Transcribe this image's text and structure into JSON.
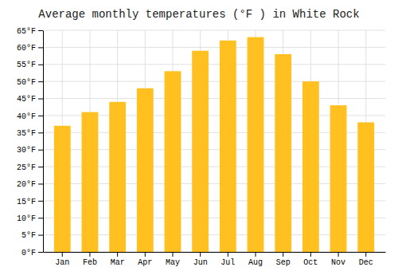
{
  "chart_data": {
    "type": "bar",
    "title": "Average monthly temperatures (°F ) in White Rock",
    "categories": [
      "Jan",
      "Feb",
      "Mar",
      "Apr",
      "May",
      "Jun",
      "Jul",
      "Aug",
      "Sep",
      "Oct",
      "Nov",
      "Dec"
    ],
    "values": [
      37,
      41,
      44,
      48,
      53,
      59,
      62,
      63,
      58,
      50,
      43,
      38
    ],
    "color": "#FFC020",
    "ylim": [
      0,
      65
    ],
    "yticks": [
      {
        "value": 0,
        "label": "0°F"
      },
      {
        "value": 5,
        "label": "5°F"
      },
      {
        "value": 10,
        "label": "10°F"
      },
      {
        "value": 15,
        "label": "15°F"
      },
      {
        "value": 20,
        "label": "20°F"
      },
      {
        "value": 25,
        "label": "25°F"
      },
      {
        "value": 30,
        "label": "30°F"
      },
      {
        "value": 35,
        "label": "35°F"
      },
      {
        "value": 40,
        "label": "40°F"
      },
      {
        "value": 45,
        "label": "45°F"
      },
      {
        "value": 50,
        "label": "50°F"
      },
      {
        "value": 55,
        "label": "55°F"
      },
      {
        "value": 60,
        "label": "60°F"
      },
      {
        "value": 65,
        "label": "65°F"
      }
    ],
    "grid": true
  }
}
